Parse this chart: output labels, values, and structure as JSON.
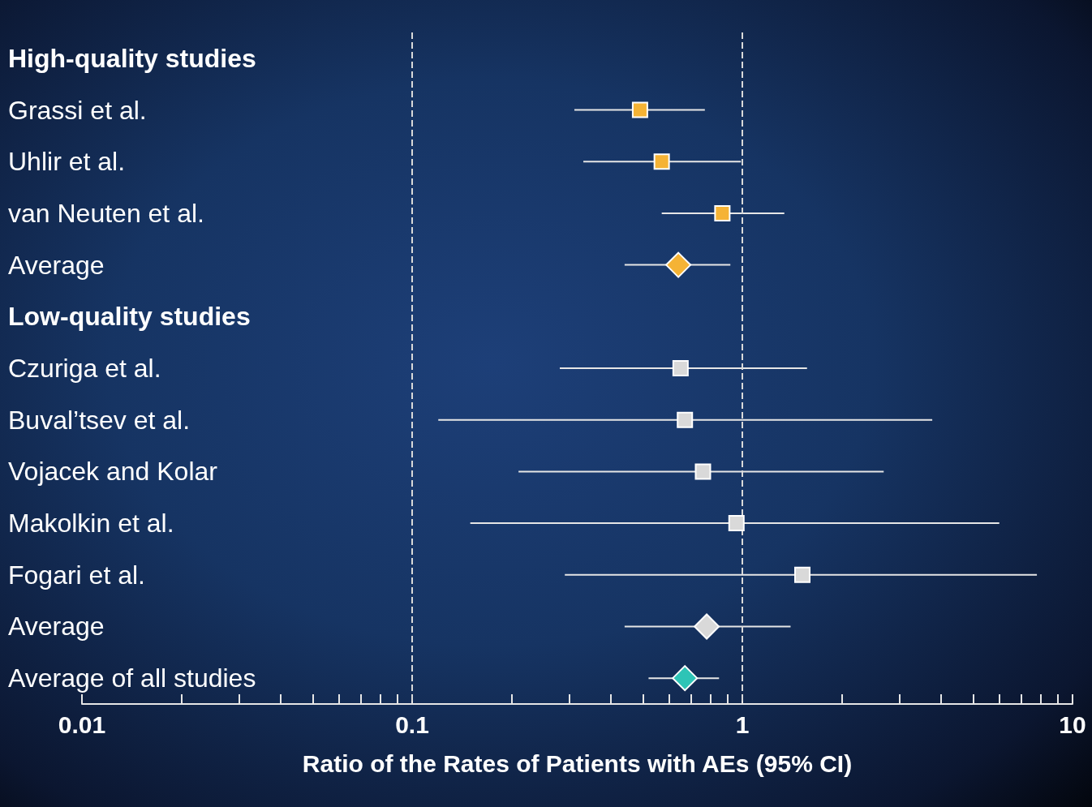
{
  "chart_data": {
    "type": "scatter",
    "orientation": "horizontal",
    "log": "x",
    "grid": false,
    "xlabel": "Ratio of the Rates of Patients with AEs (95% CI)",
    "categories": [
      "High-quality studies",
      "Grassi et al.",
      "Uhlir et al.",
      "van Neuten et al.",
      "Average",
      "Low-quality studies",
      "Czuriga et al.",
      "Buval’tsev et al.",
      "Vojacek and Kolar",
      "Makolkin et al.",
      "Fogari et al.",
      "Average",
      "Average of all studies"
    ],
    "xlim": [
      0.01,
      10
    ],
    "xticks": [
      0.01,
      {
        "value": 0.02,
        "label": null
      },
      {
        "value": 0.03,
        "label": null
      },
      {
        "value": 0.04,
        "label": null
      },
      {
        "value": 0.05,
        "label": null
      },
      {
        "value": 0.06,
        "label": null
      },
      {
        "value": 0.07,
        "label": null
      },
      {
        "value": 0.08,
        "label": null
      },
      {
        "value": 0.09,
        "label": null
      },
      0.1,
      {
        "value": 0.2,
        "label": null
      },
      {
        "value": 0.3,
        "label": null
      },
      {
        "value": 0.4,
        "label": null
      },
      {
        "value": 0.5,
        "label": null
      },
      {
        "value": 0.6,
        "label": null
      },
      {
        "value": 0.7,
        "label": null
      },
      {
        "value": 0.8,
        "label": null
      },
      {
        "value": 0.9,
        "label": null
      },
      1,
      {
        "value": 2,
        "label": null
      },
      {
        "value": 3,
        "label": null
      },
      {
        "value": 4,
        "label": null
      },
      {
        "value": 5,
        "label": null
      },
      {
        "value": 6,
        "label": null
      },
      {
        "value": 7,
        "label": null
      },
      {
        "value": 8,
        "label": null
      },
      {
        "value": 9,
        "label": null
      },
      10
    ],
    "ref_lines": [
      {
        "axis": "x",
        "value": 0.1,
        "color": "#d9d9d9",
        "line_style": "dashed"
      },
      {
        "axis": "x",
        "value": 1,
        "color": "#d9d9d9",
        "line_style": "dashed"
      }
    ],
    "series": [
      {
        "marker": "square",
        "color": "#f5b335",
        "values": [
          null,
          0.49,
          0.57,
          0.87,
          null,
          null,
          null,
          null,
          null,
          null,
          null,
          null,
          null
        ],
        "errors": [
          null,
          [
            0.31,
            0.77
          ],
          [
            0.33,
            0.99
          ],
          [
            0.57,
            1.34
          ],
          null,
          null,
          null,
          null,
          null,
          null,
          null,
          null,
          null
        ]
      },
      {
        "marker": "diamond",
        "color": "#f5b335",
        "values": [
          null,
          null,
          null,
          null,
          0.64,
          null,
          null,
          null,
          null,
          null,
          null,
          null,
          null
        ],
        "errors": [
          null,
          null,
          null,
          null,
          [
            0.44,
            0.92
          ],
          null,
          null,
          null,
          null,
          null,
          null,
          null,
          null
        ]
      },
      {
        "marker": "square",
        "color": "#d9d9d9",
        "values": [
          null,
          null,
          null,
          null,
          null,
          null,
          0.65,
          0.67,
          0.76,
          0.96,
          1.52,
          null,
          null
        ],
        "errors": [
          null,
          null,
          null,
          null,
          null,
          null,
          [
            0.28,
            1.57
          ],
          [
            0.12,
            3.76
          ],
          [
            0.21,
            2.68
          ],
          [
            0.15,
            6.0
          ],
          [
            0.29,
            7.8
          ],
          null,
          null
        ]
      },
      {
        "marker": "diamond",
        "color": "#d9d9d9",
        "values": [
          null,
          null,
          null,
          null,
          null,
          null,
          null,
          null,
          null,
          null,
          null,
          0.78,
          null
        ],
        "errors": [
          null,
          null,
          null,
          null,
          null,
          null,
          null,
          null,
          null,
          null,
          null,
          [
            0.44,
            1.4
          ],
          null
        ]
      },
      {
        "marker": "diamond",
        "color": "#2ec4b6",
        "values": [
          null,
          null,
          null,
          null,
          null,
          null,
          null,
          null,
          null,
          null,
          null,
          null,
          0.67
        ],
        "errors": [
          null,
          null,
          null,
          null,
          null,
          null,
          null,
          null,
          null,
          null,
          null,
          null,
          [
            0.52,
            0.85
          ]
        ]
      }
    ]
  }
}
